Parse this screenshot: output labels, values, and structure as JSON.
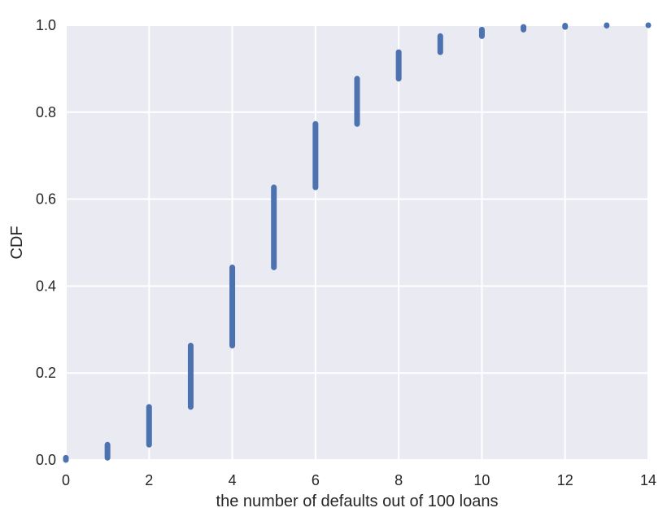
{
  "chart_data": {
    "type": "scatter",
    "xlabel": "the number of defaults out of 100 loans",
    "ylabel": "CDF",
    "xlim": [
      0,
      14
    ],
    "ylim": [
      0,
      1
    ],
    "x_ticks": [
      "0",
      "2",
      "4",
      "6",
      "8",
      "10",
      "12",
      "14"
    ],
    "y_ticks": [
      "0.0",
      "0.2",
      "0.4",
      "0.6",
      "0.8",
      "1.0"
    ],
    "grid": true,
    "marker_color": "#4c72b0",
    "background_color": "#eaeaf2",
    "series": [
      {
        "points": [
          {
            "x": 0,
            "y_min": 0.0,
            "y_max": 0.005
          },
          {
            "x": 1,
            "y_min": 0.005,
            "y_max": 0.035
          },
          {
            "x": 2,
            "y_min": 0.035,
            "y_max": 0.122
          },
          {
            "x": 3,
            "y_min": 0.122,
            "y_max": 0.263
          },
          {
            "x": 4,
            "y_min": 0.263,
            "y_max": 0.443
          },
          {
            "x": 5,
            "y_min": 0.443,
            "y_max": 0.627
          },
          {
            "x": 6,
            "y_min": 0.627,
            "y_max": 0.773
          },
          {
            "x": 7,
            "y_min": 0.773,
            "y_max": 0.877
          },
          {
            "x": 8,
            "y_min": 0.877,
            "y_max": 0.938
          },
          {
            "x": 9,
            "y_min": 0.938,
            "y_max": 0.975
          },
          {
            "x": 10,
            "y_min": 0.975,
            "y_max": 0.99
          },
          {
            "x": 11,
            "y_min": 0.99,
            "y_max": 0.996
          },
          {
            "x": 12,
            "y_min": 0.996,
            "y_max": 0.999
          },
          {
            "x": 13,
            "y_min": 0.999,
            "y_max": 1.0
          },
          {
            "x": 14,
            "y_min": 1.0,
            "y_max": 1.0
          }
        ]
      }
    ]
  }
}
